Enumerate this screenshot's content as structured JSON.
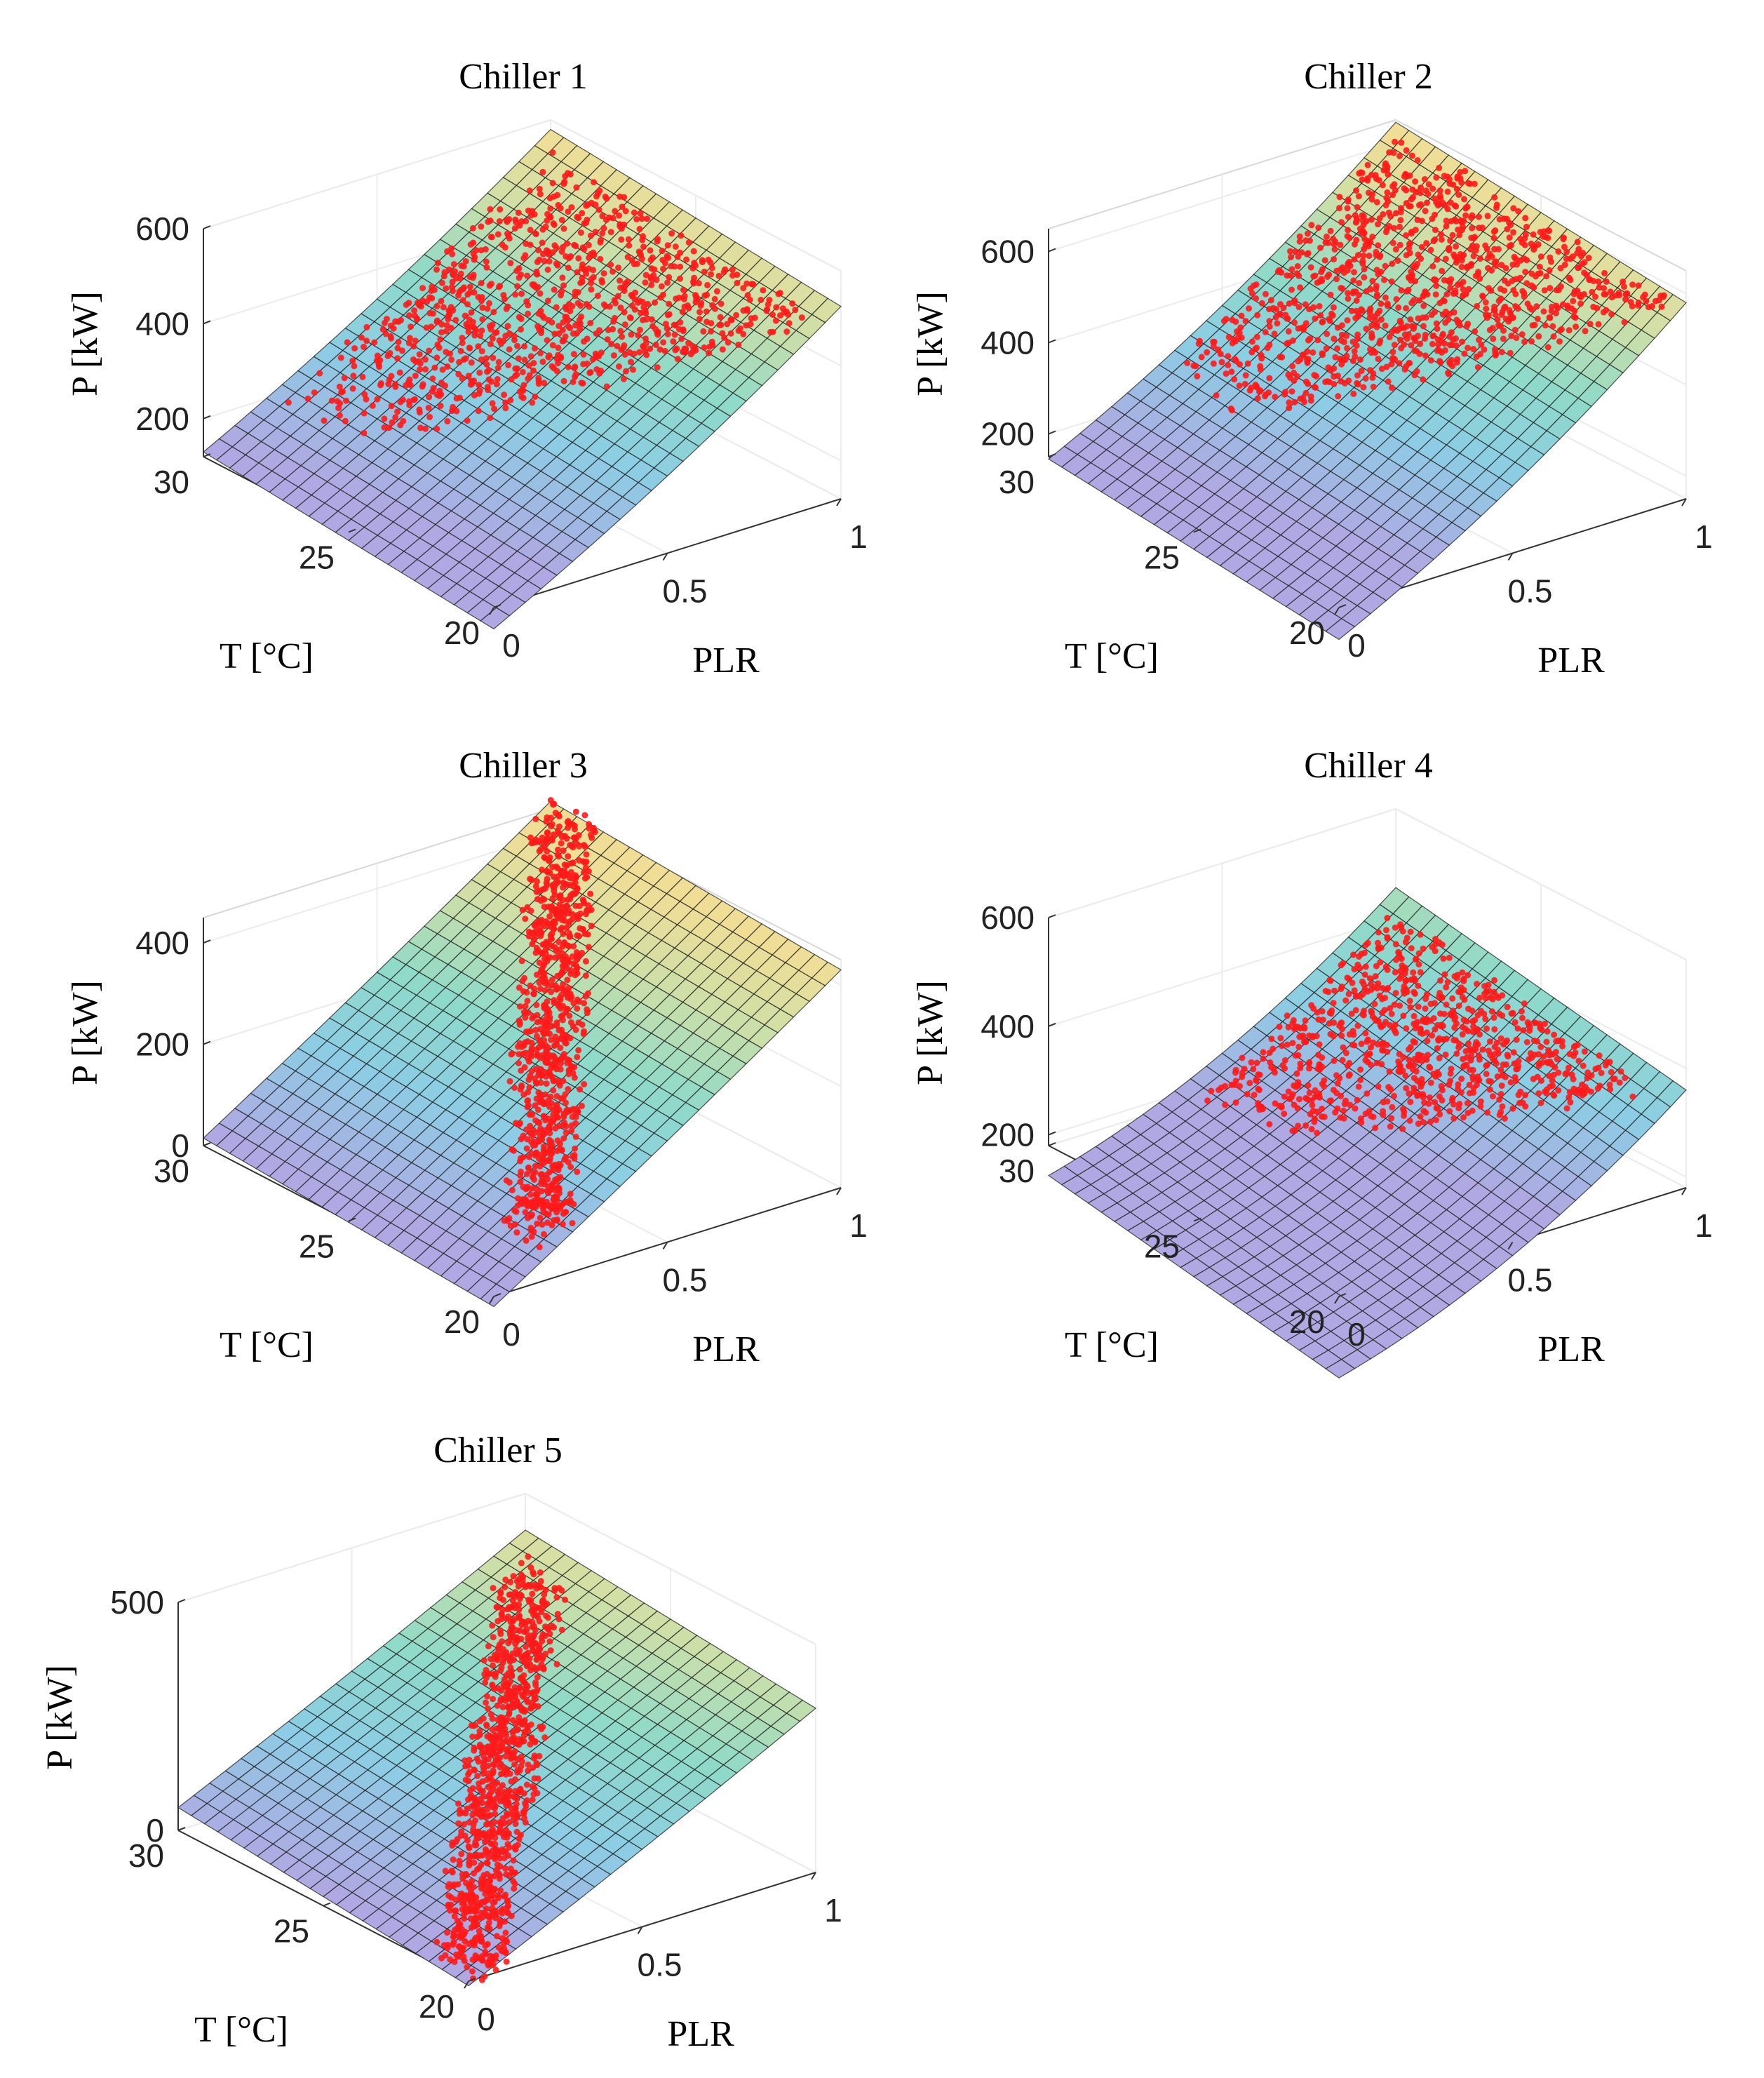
{
  "chart_data": [
    {
      "type": "surface",
      "title": "Chiller 1",
      "xlabel": "PLR",
      "ylabel": "T [°C]",
      "zlabel": "P [kW]",
      "xlim": [
        0,
        1
      ],
      "ylim": [
        20,
        30
      ],
      "zlim": [
        120,
        600
      ],
      "xticks": [
        "0",
        "0.5",
        "1"
      ],
      "yticks": [
        "20",
        "25",
        "30"
      ],
      "zticks": [
        "200",
        "400",
        "600"
      ],
      "xtick_values": [
        0,
        0.5,
        1
      ],
      "ytick_values": [
        20,
        25,
        30
      ],
      "ztick_values": [
        200,
        400,
        600
      ],
      "surface": {
        "p0": 75,
        "a": 380,
        "b": 70,
        "c": 5.5
      },
      "scatter": {
        "count": 900,
        "x_range": [
          0.2,
          0.95
        ],
        "y_range": [
          20.3,
          29.5
        ],
        "shape": "wedge-high-plr",
        "noise": 20
      }
    },
    {
      "type": "surface",
      "title": "Chiller 2",
      "xlabel": "PLR",
      "ylabel": "T [°C]",
      "zlabel": "P [kW]",
      "xlim": [
        0,
        1
      ],
      "ylim": [
        20,
        30
      ],
      "zlim": [
        150,
        650
      ],
      "xticks": [
        "0",
        "0.5",
        "1"
      ],
      "yticks": [
        "20",
        "25",
        "30"
      ],
      "zticks": [
        "200",
        "400",
        "600"
      ],
      "xtick_values": [
        0,
        0.5,
        1
      ],
      "ytick_values": [
        20,
        25,
        30
      ],
      "ztick_values": [
        200,
        400,
        600
      ],
      "surface": {
        "p0": 80,
        "a": 370,
        "b": 130,
        "c": 6.5
      },
      "scatter": {
        "count": 1000,
        "x_range": [
          0.3,
          0.98
        ],
        "y_range": [
          20.3,
          29.7
        ],
        "shape": "wedge-high-plr",
        "noise": 22
      }
    },
    {
      "type": "surface",
      "title": "Chiller 3",
      "xlabel": "PLR",
      "ylabel": "T [°C]",
      "zlabel": "P [kW]",
      "xlim": [
        0,
        1
      ],
      "ylim": [
        20,
        30
      ],
      "zlim": [
        0,
        450
      ],
      "xticks": [
        "0",
        "0.5",
        "1"
      ],
      "yticks": [
        "20",
        "25",
        "30"
      ],
      "zticks": [
        "0",
        "200",
        "400"
      ],
      "xtick_values": [
        0,
        0.5,
        1
      ],
      "ytick_values": [
        20,
        25,
        30
      ],
      "ztick_values": [
        0,
        200,
        400
      ],
      "surface": {
        "p0": -20,
        "a": 430,
        "b": 20,
        "c": 3.5
      },
      "scatter": {
        "count": 900,
        "x_range": [
          0.2,
          0.98
        ],
        "y_range": [
          20.3,
          29.8
        ],
        "shape": "diagonal",
        "noise": 18
      }
    },
    {
      "type": "surface",
      "title": "Chiller 4",
      "xlabel": "PLR",
      "ylabel": "T [°C]",
      "zlabel": "P [kW]",
      "xlim": [
        0,
        1
      ],
      "ylim": [
        20,
        30
      ],
      "zlim": [
        180,
        600
      ],
      "xticks": [
        "0",
        "0.5",
        "1"
      ],
      "yticks": [
        "20",
        "25",
        "30"
      ],
      "zticks": [
        "200",
        "400",
        "600"
      ],
      "xtick_values": [
        0,
        0.5,
        1
      ],
      "ytick_values": [
        20,
        25,
        30
      ],
      "ztick_values": [
        200,
        400,
        600
      ],
      "surface": {
        "p0": 30,
        "a": 170,
        "b": 160,
        "c": 9.5
      },
      "scatter": {
        "count": 800,
        "x_range": [
          0.4,
          0.95
        ],
        "y_range": [
          21,
          29.5
        ],
        "shape": "wedge-high-plr",
        "noise": 18
      }
    },
    {
      "type": "surface",
      "title": "Chiller 5",
      "xlabel": "PLR",
      "ylabel": "T [°C]",
      "zlabel": "P [kW]",
      "xlim": [
        0,
        1
      ],
      "ylim": [
        20,
        30
      ],
      "zlim": [
        0,
        500
      ],
      "xticks": [
        "0",
        "0.5",
        "1"
      ],
      "yticks": [
        "20",
        "25",
        "30"
      ],
      "zticks": [
        "0",
        "500"
      ],
      "xtick_values": [
        0,
        0.5,
        1
      ],
      "ytick_values": [
        20,
        25,
        30
      ],
      "ztick_values": [
        0,
        500
      ],
      "surface": {
        "p0": -10,
        "a": 350,
        "b": 20,
        "c": 6
      },
      "scatter": {
        "count": 1000,
        "x_range": [
          0.05,
          0.9
        ],
        "y_range": [
          20.1,
          29
        ],
        "shape": "diagonal",
        "noise": 18
      }
    }
  ]
}
